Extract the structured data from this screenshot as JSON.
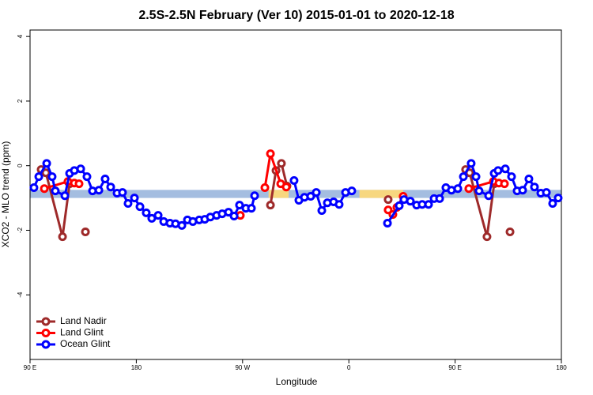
{
  "chart_data": {
    "type": "line",
    "title": "2.5S-2.5N February (Ver 10)   2015-01-01 to 2020-12-18",
    "x_label": "Longitude",
    "y_label": "XCO2 - MLO trend (ppm)",
    "xlim": [
      90,
      540
    ],
    "ylim": [
      -6.0,
      4.2
    ],
    "xticks": [
      {
        "value": 90,
        "label": "90 E"
      },
      {
        "value": 180,
        "label": "180"
      },
      {
        "value": 270,
        "label": "90 W"
      },
      {
        "value": 360,
        "label": "0"
      },
      {
        "value": 450,
        "label": "90 E"
      },
      {
        "value": 540,
        "label": "180"
      }
    ],
    "yticks": [
      -4,
      -2,
      0,
      2,
      4
    ],
    "background_band": {
      "range": [
        -1.0,
        -0.75
      ],
      "color": "#a4bde0",
      "land_color": "#f7d77f",
      "land_ranges": [
        [
          292,
          309
        ],
        [
          369,
          406
        ]
      ]
    },
    "legend": "bottom-left",
    "series": [
      {
        "name": "Land Nadir",
        "color": "#9e2a2a",
        "x": [
          99.4,
          103.4,
          117.5,
          123.5,
          null,
          136.9,
          null,
          293.6,
          298.3,
          302.9,
          307.6,
          null,
          393.3,
          null,
          458.9,
          462.3,
          477.0,
          483.1,
          null,
          496.5
        ],
        "values": [
          -0.12,
          -0.22,
          -2.2,
          -0.56,
          null,
          -2.05,
          null,
          -1.22,
          -0.15,
          0.07,
          -0.63,
          null,
          -1.05,
          null,
          -0.12,
          -0.22,
          -2.2,
          -0.56,
          null,
          -2.05
        ]
      },
      {
        "name": "Land Glint",
        "color": "#ff0000",
        "x": [
          102.1,
          122.1,
          127.5,
          131.5,
          null,
          268.1,
          null,
          288.9,
          293.6,
          302.3,
          307.0,
          null,
          393.3,
          397.3,
          400.7,
          406.0,
          null,
          461.6,
          482.4,
          487.1,
          491.8
        ],
        "values": [
          -0.71,
          -0.49,
          -0.54,
          -0.56,
          null,
          -1.54,
          null,
          -0.68,
          0.37,
          -0.56,
          -0.66,
          null,
          -1.37,
          -1.51,
          -1.29,
          -0.95,
          null,
          -0.71,
          -0.49,
          -0.54,
          -0.56
        ]
      },
      {
        "name": "Ocean Glint",
        "color": "#0000ff",
        "x": [
          93.3,
          97.4,
          104.1,
          108.7,
          111.4,
          119.5,
          123.5,
          127.5,
          132.9,
          138.2,
          142.9,
          148.3,
          153.6,
          158.3,
          163.7,
          168.3,
          173.0,
          178.4,
          183.1,
          188.4,
          193.1,
          198.5,
          203.2,
          208.5,
          213.2,
          218.6,
          223.3,
          227.9,
          233.3,
          238.0,
          242.7,
          248.0,
          252.7,
          258.1,
          262.8,
          267.4,
          272.8,
          277.5,
          280.2,
          null,
          313.6,
          317.7,
          322.4,
          327.7,
          332.4,
          337.1,
          341.8,
          347.1,
          351.8,
          357.2,
          362.5,
          null,
          392.7,
          402.7,
          406.7,
          412.1,
          417.4,
          422.1,
          427.5,
          432.2,
          436.9,
          442.2,
          446.9,
          452.3,
          457.0,
          463.6,
          467.7,
          470.3,
          478.4,
          483.1,
          486.4,
          492.5,
          497.8,
          502.5,
          507.2,
          512.5,
          517.2,
          522.6,
          527.3,
          532.6,
          537.3
        ],
        "values": [
          -0.68,
          -0.34,
          0.07,
          -0.34,
          -0.78,
          -0.93,
          -0.24,
          -0.15,
          -0.1,
          -0.34,
          -0.78,
          -0.76,
          -0.41,
          -0.66,
          -0.85,
          -0.83,
          -1.17,
          -1.0,
          -1.27,
          -1.46,
          -1.63,
          -1.54,
          -1.73,
          -1.78,
          -1.8,
          -1.85,
          -1.68,
          -1.73,
          -1.68,
          -1.66,
          -1.59,
          -1.54,
          -1.49,
          -1.44,
          -1.56,
          -1.22,
          -1.32,
          -1.32,
          -0.93,
          null,
          -0.46,
          -1.07,
          -0.98,
          -0.95,
          -0.83,
          -1.39,
          -1.15,
          -1.12,
          -1.2,
          -0.83,
          -0.78,
          null,
          -1.78,
          -1.24,
          -1.05,
          -1.1,
          -1.22,
          -1.2,
          -1.2,
          -1.02,
          -1.02,
          -0.68,
          -0.76,
          -0.71,
          -0.34,
          0.07,
          -0.34,
          -0.78,
          -0.93,
          -0.24,
          -0.15,
          -0.1,
          -0.34,
          -0.78,
          -0.76,
          -0.41,
          -0.66,
          -0.85,
          -0.83,
          -1.17,
          -1.0
        ]
      }
    ]
  }
}
